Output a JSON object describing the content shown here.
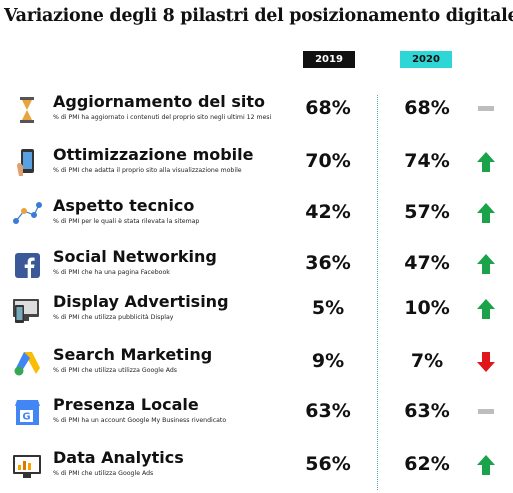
{
  "header": {
    "title": "Variazione degli 8 pilastri del posizionamento digitale",
    "columns": [
      "2019",
      "2020"
    ]
  },
  "rows": [
    {
      "title": "Aggiornamento del sito",
      "subtitle": "% di PMI ha aggiornato i contenuti del proprio sito negli ultimi 12 mesi",
      "values": [
        "68%",
        "68%"
      ],
      "trend": "flat"
    },
    {
      "title": "Ottimizzazione mobile",
      "subtitle": "% di PMI che adatta il proprio sito alla visualizzazione mobile",
      "values": [
        "70%",
        "74%"
      ],
      "trend": "up"
    },
    {
      "title": "Aspetto tecnico",
      "subtitle": "% di PMI per le quali è stata rilevata la sitemap",
      "values": [
        "42%",
        "57%"
      ],
      "trend": "up"
    },
    {
      "title": "Social Networking",
      "subtitle": "% di PMI che ha una pagina Facebook",
      "values": [
        "36%",
        "47%"
      ],
      "trend": "up"
    },
    {
      "title": "Display Advertising",
      "subtitle": "% di PMI che utilizza pubblicità Display",
      "values": [
        "5%",
        "10%"
      ],
      "trend": "up"
    },
    {
      "title": "Search Marketing",
      "subtitle": "% di PMI che utilizza utilizza Google Ads",
      "values": [
        "9%",
        "7%"
      ],
      "trend": "down"
    },
    {
      "title": "Presenza Locale",
      "subtitle": "% di PMI ha un account Google My Business rivendicato",
      "values": [
        "63%",
        "63%"
      ],
      "trend": "flat"
    },
    {
      "title": "Data Analytics",
      "subtitle": "% di PMI che utilizza Google Ads",
      "values": [
        "56%",
        "62%"
      ],
      "trend": "up"
    }
  ]
}
